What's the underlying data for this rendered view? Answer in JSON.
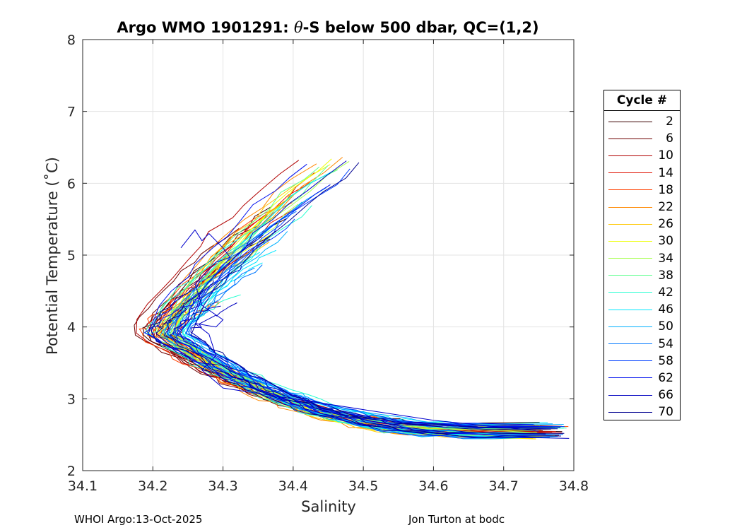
{
  "chart_data": {
    "type": "line",
    "title_prefix": "Argo WMO 1901291: ",
    "title_theta": "θ",
    "title_suffix": "-S below 500 dbar,  QC=(1,2)",
    "xlabel": "Salinity",
    "ylabel": "Potential Temperature (˚C)",
    "xlim": [
      34.1,
      34.8
    ],
    "ylim": [
      2,
      8
    ],
    "xticks": [
      "34.1",
      "34.2",
      "34.3",
      "34.4",
      "34.5",
      "34.6",
      "34.7",
      "34.8"
    ],
    "yticks": [
      "2",
      "3",
      "4",
      "5",
      "6",
      "7",
      "8"
    ],
    "grid": true,
    "legend_title": "Cycle #",
    "legend_position": "right",
    "legend": [
      {
        "label": "2",
        "color": "#3a0000"
      },
      {
        "label": "6",
        "color": "#6e0000"
      },
      {
        "label": "10",
        "color": "#b00000"
      },
      {
        "label": "14",
        "color": "#e01000"
      },
      {
        "label": "18",
        "color": "#ff4000"
      },
      {
        "label": "22",
        "color": "#ff8800"
      },
      {
        "label": "26",
        "color": "#ffc800"
      },
      {
        "label": "30",
        "color": "#eeff10"
      },
      {
        "label": "34",
        "color": "#a8ff50"
      },
      {
        "label": "38",
        "color": "#60ff90"
      },
      {
        "label": "42",
        "color": "#20ffd0"
      },
      {
        "label": "46",
        "color": "#00e8ff"
      },
      {
        "label": "50",
        "color": "#00b0ff"
      },
      {
        "label": "54",
        "color": "#0078ff"
      },
      {
        "label": "58",
        "color": "#0040ff"
      },
      {
        "label": "62",
        "color": "#0010ee"
      },
      {
        "label": "66",
        "color": "#0000c0"
      },
      {
        "label": "70",
        "color": "#000090"
      }
    ],
    "series_template": [
      {
        "name": "anomalous_profile",
        "points": [
          [
            34.75,
            2.55
          ],
          [
            34.6,
            2.7
          ],
          [
            34.5,
            2.85
          ],
          [
            34.4,
            3.0
          ],
          [
            34.3,
            3.15
          ],
          [
            34.27,
            3.4
          ],
          [
            34.29,
            3.6
          ],
          [
            34.28,
            3.9
          ],
          [
            34.26,
            4.05
          ],
          [
            34.29,
            4.0
          ],
          [
            34.3,
            4.1
          ],
          [
            34.27,
            4.3
          ],
          [
            34.26,
            4.6
          ],
          [
            34.29,
            4.9
          ],
          [
            34.31,
            4.97
          ],
          [
            34.3,
            5.1
          ],
          [
            34.28,
            5.3
          ],
          [
            34.27,
            5.2
          ],
          [
            34.26,
            5.35
          ],
          [
            34.24,
            5.1
          ]
        ]
      }
    ]
  },
  "footer": {
    "left": "WHOI Argo:13-Oct-2025",
    "right": "Jon Turton at bodc"
  }
}
